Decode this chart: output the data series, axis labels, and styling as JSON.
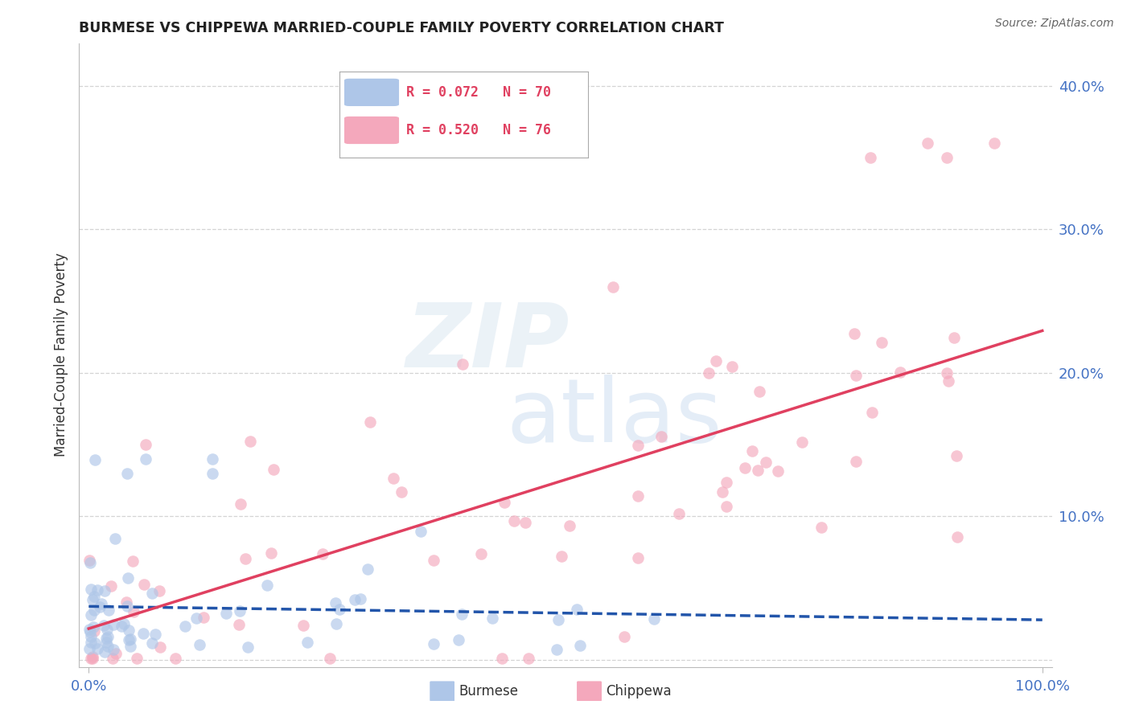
{
  "title": "BURMESE VS CHIPPEWA MARRIED-COUPLE FAMILY POVERTY CORRELATION CHART",
  "source": "Source: ZipAtlas.com",
  "ylabel": "Married-Couple Family Poverty",
  "bg_color": "#ffffff",
  "grid_color": "#d0d0d0",
  "axis_label_color": "#4472c4",
  "burmese_scatter_color": "#aec6e8",
  "chippewa_scatter_color": "#f4a8bc",
  "burmese_line_color": "#2255aa",
  "chippewa_line_color": "#e04060",
  "legend_burmese_R": 0.072,
  "legend_burmese_N": 70,
  "legend_chippewa_R": 0.52,
  "legend_chippewa_N": 76,
  "xlim": [
    0.0,
    1.0
  ],
  "ylim": [
    0.0,
    0.43
  ],
  "ytick_vals": [
    0.0,
    0.1,
    0.2,
    0.3,
    0.4
  ],
  "ytick_labels": [
    "",
    "10.0%",
    "20.0%",
    "30.0%",
    "40.0%"
  ],
  "xtick_vals": [
    0.0,
    1.0
  ],
  "xtick_labels": [
    "0.0%",
    "100.0%"
  ],
  "watermark_zip": "ZIP",
  "watermark_atlas": "atlas",
  "scatter_size": 110,
  "scatter_alpha": 0.65
}
